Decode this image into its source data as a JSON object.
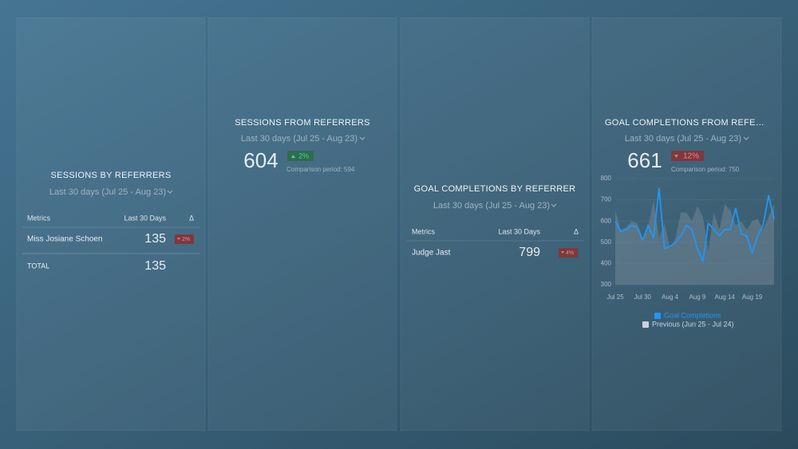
{
  "panels": [
    {
      "title": "SESSIONS BY REFERRERS",
      "date_range": "Last 30 days (Jul 25 - Aug 23)",
      "table": {
        "header": [
          "Metrics",
          "Last 30 Days",
          "Δ"
        ],
        "rows": [
          [
            "Miss Josiane Schoen",
            135,
            "2%"
          ]
        ],
        "total": [
          "TOTAL",
          135
        ]
      }
    },
    {
      "title": "SESSIONS FROM REFERRERS",
      "date_range": "Last 30 days (Jul 25 - Aug 23)",
      "value": 604,
      "change": "2%",
      "comparison": "Comparison period: 594"
    },
    {
      "title": "GOAL COMPLETIONS BY REFERRER",
      "date_range": "Last 30 days (Jul 25 - Aug 23)",
      "table": {
        "header": [
          "Metrics",
          "Last 30 Days",
          "Δ"
        ],
        "rows": [
          [
            "Judge Jast",
            799,
            "4%"
          ]
        ]
      }
    },
    {
      "title": "GOAL COMPLETIONS FROM REFE…",
      "date_range": "Last 30 days (Jul 25 - Aug 23)",
      "value": 661,
      "change": "12%",
      "comparison": "Comparison period: 750"
    }
  ],
  "chart_data": {
    "type": "line",
    "categories": [
      "Jul 25",
      null,
      null,
      null,
      null,
      "Jul 30",
      null,
      null,
      null,
      null,
      "Aug 4",
      null,
      null,
      null,
      null,
      "Aug 9",
      null,
      null,
      null,
      null,
      "Aug 14",
      null,
      null,
      null,
      null,
      "Aug 19",
      null,
      null,
      null,
      null
    ],
    "ylim": [
      300,
      800
    ],
    "yticks": [
      300,
      400,
      500,
      600,
      700,
      800
    ],
    "grid": true,
    "series": [
      {
        "name": "Goal Completions",
        "color": "#2196f3",
        "values": [
          600,
          550,
          560,
          580,
          570,
          510,
          580,
          520,
          755,
          470,
          480,
          500,
          530,
          580,
          560,
          470,
          410,
          590,
          560,
          530,
          560,
          560,
          660,
          540,
          530,
          450,
          530,
          580,
          720,
          610
        ]
      },
      {
        "name": "Previous (Jun 25 - Jul 24)",
        "color": "#7d8f9b",
        "values": [
          650,
          560,
          570,
          600,
          590,
          520,
          570,
          700,
          520,
          590,
          470,
          520,
          640,
          640,
          600,
          670,
          620,
          460,
          640,
          560,
          680,
          650,
          580,
          600,
          560,
          600,
          610,
          560,
          620,
          680
        ]
      }
    ]
  }
}
